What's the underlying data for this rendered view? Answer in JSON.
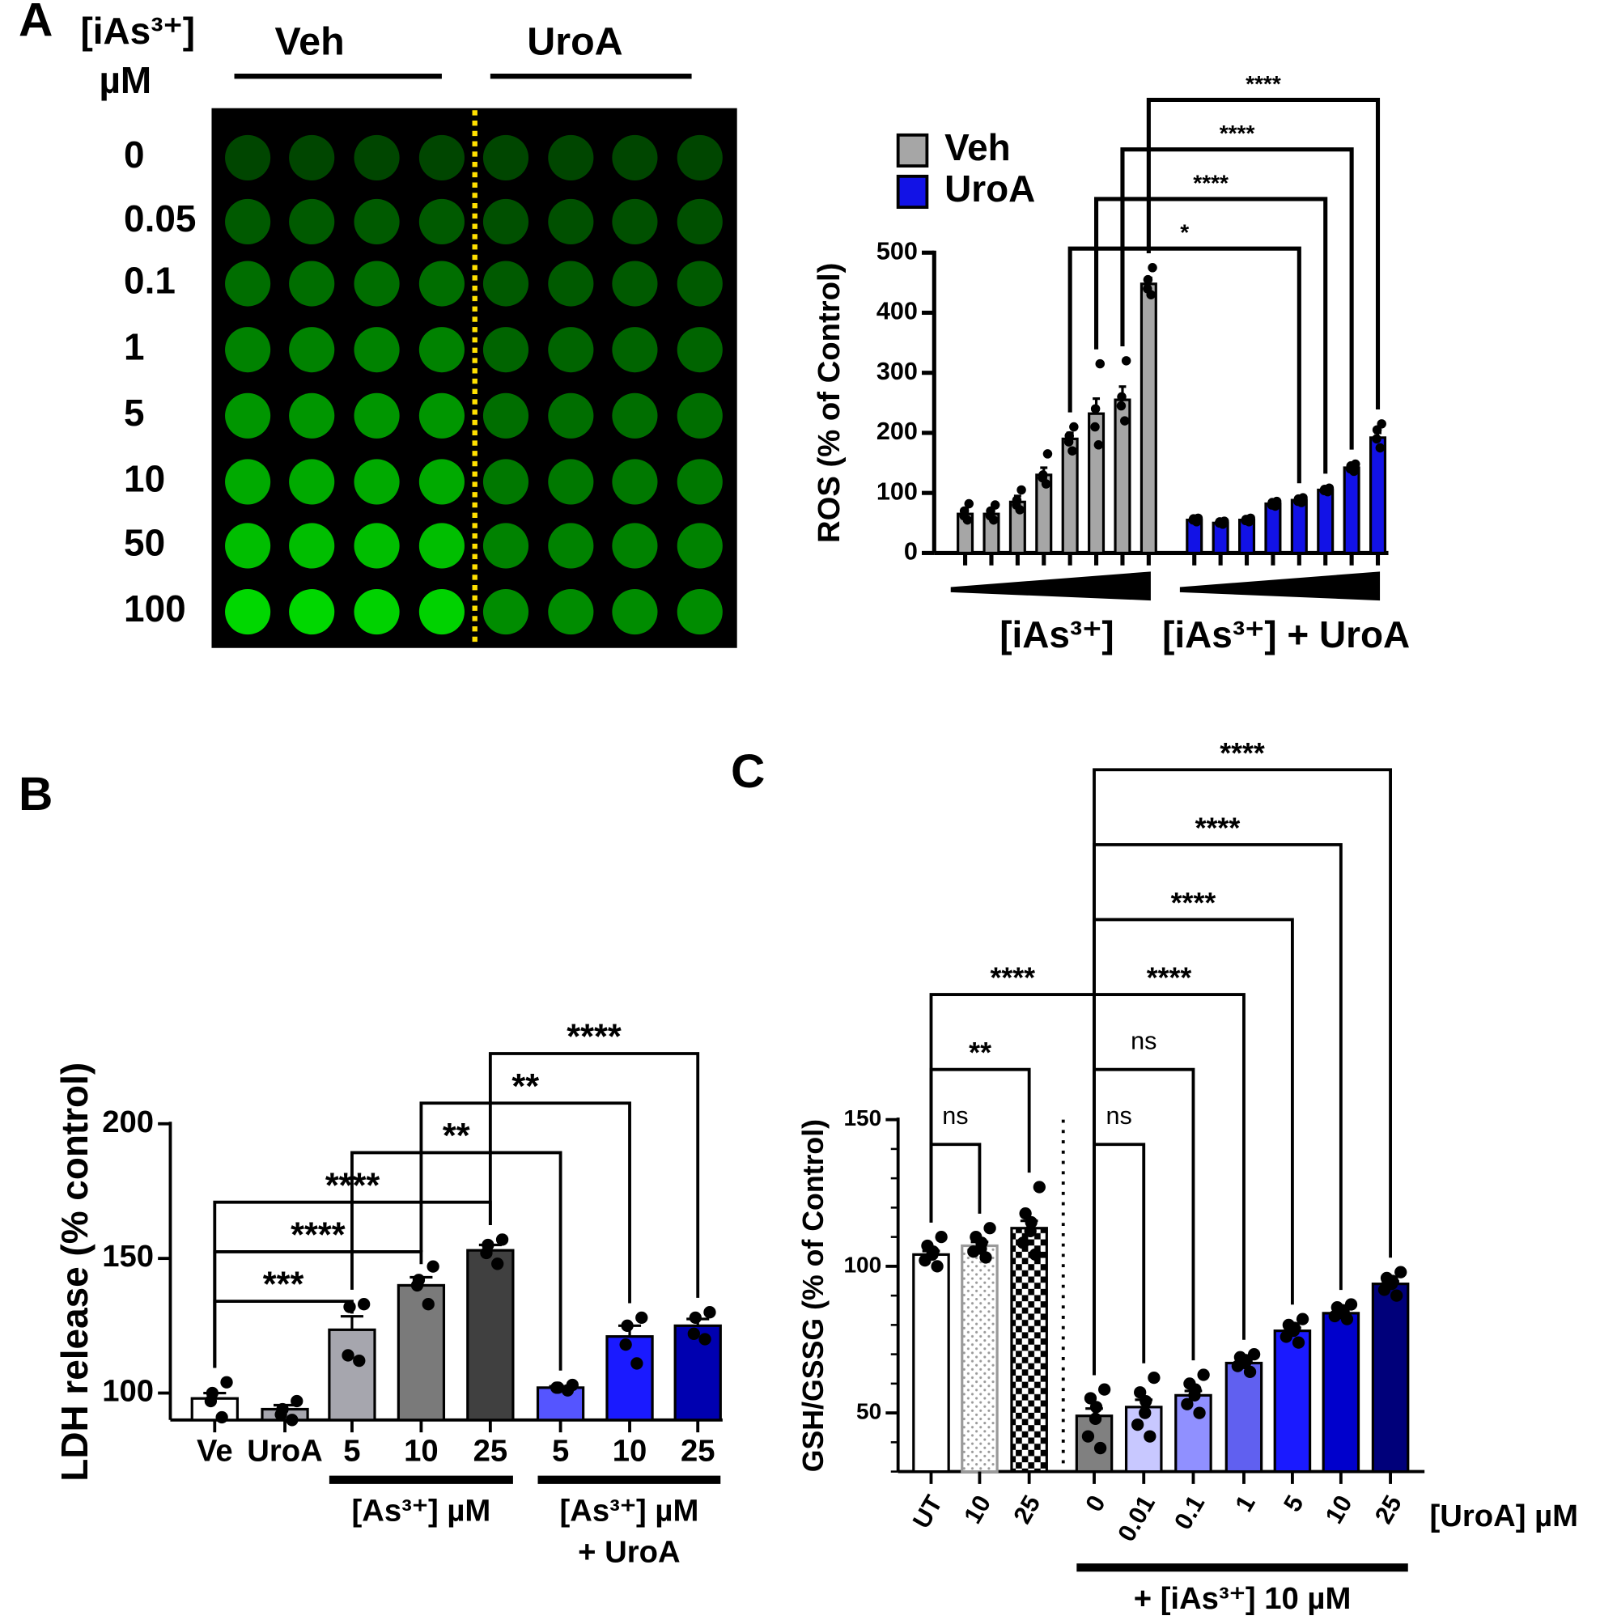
{
  "plate": {
    "axis_label": "[iAs³⁺]",
    "unit": "µM",
    "columns": [
      "Veh",
      "UroA"
    ],
    "rows": [
      "0",
      "0.05",
      "0.1",
      "1",
      "5",
      "10",
      "50",
      "100"
    ]
  },
  "chart_data": [
    {
      "type": "bar",
      "panel_label": "A",
      "y_label": "ROS (% of Control)",
      "categories": [
        null,
        null,
        null,
        null,
        null,
        null,
        null,
        null,
        null,
        null,
        null,
        null,
        null,
        null,
        null,
        null
      ],
      "series": [
        {
          "name": "Veh",
          "color": "#a6a6a6",
          "values": [
            65,
            65,
            85,
            130,
            190,
            232,
            255,
            448,
            null,
            null,
            null,
            null,
            null,
            null,
            null,
            null
          ],
          "errors": [
            8,
            8,
            10,
            12,
            10,
            25,
            22,
            10,
            null,
            null,
            null,
            null,
            null,
            null,
            null,
            null
          ],
          "points": [
            [
              55,
              62,
              70,
              82
            ],
            [
              55,
              62,
              70,
              80
            ],
            [
              72,
              80,
              88,
              105
            ],
            [
              115,
              125,
              130,
              165
            ],
            [
              170,
              185,
              195,
              210
            ],
            [
              180,
              210,
              240,
              315
            ],
            [
              220,
              245,
              260,
              320
            ],
            [
              430,
              440,
              455,
              475
            ],
            null,
            null,
            null,
            null,
            null,
            null,
            null,
            null
          ]
        },
        {
          "name": "UroA",
          "color": "#1212e6",
          "values": [
            null,
            null,
            null,
            null,
            null,
            null,
            null,
            null,
            55,
            50,
            55,
            82,
            88,
            105,
            142,
            192
          ],
          "errors": [
            null,
            null,
            null,
            null,
            null,
            null,
            null,
            null,
            3,
            2,
            3,
            3,
            3,
            2,
            4,
            8
          ],
          "points": [
            null,
            null,
            null,
            null,
            null,
            null,
            null,
            null,
            [
              52,
              55,
              57,
              58
            ],
            [
              48,
              50,
              52,
              53
            ],
            [
              52,
              54,
              56,
              58
            ],
            [
              78,
              80,
              84,
              86
            ],
            [
              84,
              86,
              90,
              92
            ],
            [
              102,
              104,
              106,
              108
            ],
            [
              136,
              140,
              145,
              148
            ],
            [
              175,
              190,
              205,
              215
            ]
          ]
        }
      ],
      "group_labels": [
        {
          "lines": [
            "[iAs³⁺]"
          ],
          "from": 0,
          "to": 7
        },
        {
          "lines": [
            "[iAs³⁺] + UroA"
          ],
          "from": 8,
          "to": 15
        }
      ],
      "ylim": [
        0,
        500
      ],
      "yticks": [
        0,
        100,
        200,
        300,
        400,
        500
      ],
      "legend": "top-left",
      "annotations": [
        {
          "label": "*",
          "from": 4,
          "to": 12
        },
        {
          "label": "****",
          "from": 5,
          "to": 13
        },
        {
          "label": "****",
          "from": 6,
          "to": 14
        },
        {
          "label": "****",
          "from": 7,
          "to": 15
        }
      ]
    },
    {
      "type": "bar",
      "panel_label": "B",
      "y_label": "LDH release (% control)",
      "categories": [
        "Ve",
        "UroA",
        "5",
        "10",
        "25",
        "5",
        "10",
        "25"
      ],
      "values": [
        98,
        94,
        123.5,
        140,
        153,
        102,
        121,
        125
      ],
      "errors": [
        2,
        1.5,
        5,
        3,
        2,
        0.5,
        4,
        2.5
      ],
      "points": [
        [
          91,
          97,
          100,
          104
        ],
        [
          90,
          92,
          94,
          97
        ],
        [
          112,
          114,
          132,
          133
        ],
        [
          133,
          140,
          142,
          147
        ],
        [
          148,
          152,
          155,
          157
        ],
        [
          101,
          102,
          102,
          103
        ],
        [
          111,
          118,
          125,
          128
        ],
        [
          120,
          122,
          128,
          130
        ]
      ],
      "colors": [
        "#ffffff",
        "#a6a6ae",
        "#a6a6ae",
        "#7a7a7a",
        "#404040",
        "#5555ff",
        "#1a1aff",
        "#0000b0"
      ],
      "group_labels": [
        {
          "lines": [
            "[As³⁺] µM"
          ],
          "from": 2,
          "to": 4
        },
        {
          "lines": [
            "[As³⁺] µM",
            "+ UroA"
          ],
          "from": 5,
          "to": 7
        }
      ],
      "ylim": [
        90,
        200
      ],
      "yticks": [
        100,
        150,
        200
      ],
      "annotations": [
        {
          "label": "***",
          "from": 0,
          "to": 2
        },
        {
          "label": "****",
          "from": 0,
          "to": 3
        },
        {
          "label": "****",
          "from": 0,
          "to": 4
        },
        {
          "label": "**",
          "from": 2,
          "to": 5
        },
        {
          "label": "**",
          "from": 3,
          "to": 6
        },
        {
          "label": "****",
          "from": 4,
          "to": 7
        }
      ]
    },
    {
      "type": "bar",
      "panel_label": "C",
      "y_label": "GSH/GSSG (% of Control)",
      "x_label": "[UroA] µM",
      "categories": [
        "UT",
        "10",
        "25",
        "0",
        "0.01",
        "0.1",
        "1",
        "5",
        "10",
        "25"
      ],
      "values": [
        104,
        107,
        113,
        49,
        52,
        56,
        67,
        78,
        84,
        94
      ],
      "errors": [
        1.2,
        1.3,
        2.5,
        2.5,
        2.5,
        1.5,
        0.7,
        1,
        0.6,
        0.8
      ],
      "points": [
        [
          100,
          102,
          104,
          105,
          107,
          110
        ],
        [
          103,
          105,
          106,
          108,
          110,
          113
        ],
        [
          104,
          108,
          112,
          115,
          118,
          127
        ],
        [
          38,
          42,
          48,
          52,
          55,
          58
        ],
        [
          42,
          46,
          50,
          54,
          57,
          62
        ],
        [
          50,
          53,
          56,
          58,
          60,
          63
        ],
        [
          64,
          66,
          67,
          68,
          69,
          70
        ],
        [
          74,
          76,
          78,
          79,
          80,
          82
        ],
        [
          82,
          83,
          84,
          85,
          86,
          87
        ],
        [
          90,
          92,
          94,
          95,
          96,
          98
        ]
      ],
      "colors": [
        "#ffffff",
        "#9a9a9a",
        "#000000",
        "#808080",
        "#c8c8ff",
        "#9090ff",
        "#6060f0",
        "#1a1aff",
        "#0000cc",
        "#00007a"
      ],
      "hatch": [
        null,
        "dots",
        "checker",
        null,
        null,
        null,
        null,
        null,
        null,
        null
      ],
      "group_labels": [
        {
          "lines": [
            "+ [iAs³⁺] 10 µM"
          ],
          "from": 3,
          "to": 9
        }
      ],
      "ylim": [
        30,
        150
      ],
      "yticks": [
        50,
        100,
        150
      ],
      "yminor_ticks": [
        30,
        40,
        60,
        70,
        80,
        90,
        110,
        120,
        130,
        140
      ],
      "annotations": [
        {
          "label": "ns",
          "from": 0,
          "to": 1
        },
        {
          "label": "ns",
          "from": 3,
          "to": 4
        },
        {
          "label": "**",
          "from": 0,
          "to": 2
        },
        {
          "label": "ns",
          "from": 3,
          "to": 5
        },
        {
          "label": "****",
          "from": 0,
          "to": 3
        },
        {
          "label": "****",
          "from": 3,
          "to": 6
        },
        {
          "label": "****",
          "from": 3,
          "to": 7
        },
        {
          "label": "****",
          "from": 3,
          "to": 8
        },
        {
          "label": "****",
          "from": 3,
          "to": 9
        }
      ]
    }
  ]
}
